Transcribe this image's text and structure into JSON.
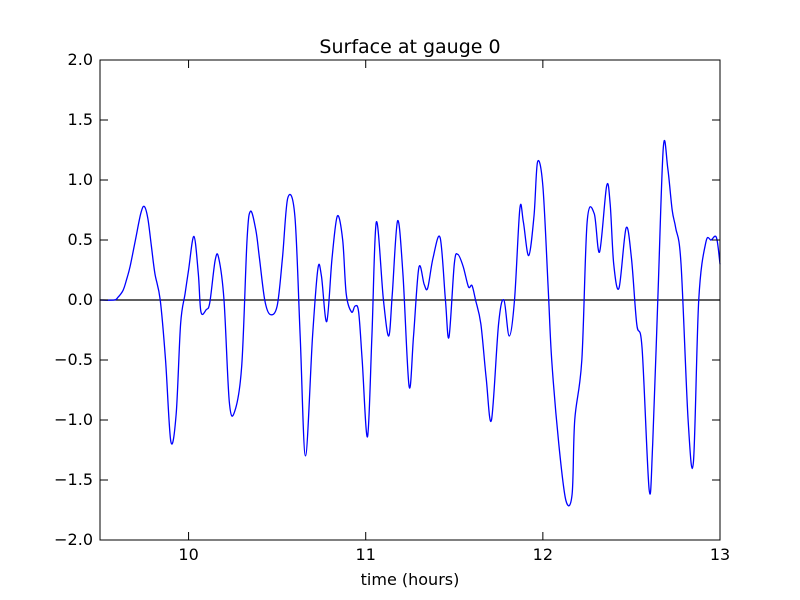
{
  "chart_data": {
    "type": "line",
    "title": "Surface at gauge 0",
    "xlabel": "time (hours)",
    "ylabel": "",
    "xlim": [
      9.5,
      13.0
    ],
    "ylim": [
      -2.0,
      2.0
    ],
    "xticks": [
      10,
      11,
      12,
      13
    ],
    "xtick_labels": [
      "10",
      "11",
      "12",
      "13"
    ],
    "yticks": [
      -2.0,
      -1.5,
      -1.0,
      -0.5,
      0.0,
      0.5,
      1.0,
      1.5,
      2.0
    ],
    "ytick_labels": [
      "−2.0",
      "−1.5",
      "−1.0",
      "−0.5",
      "0.0",
      "0.5",
      "1.0",
      "1.5",
      "2.0"
    ],
    "grid": false,
    "reference_line": {
      "y": 0.0,
      "color": "#000000"
    },
    "series": [
      {
        "color": "#0000ff",
        "x": [
          9.5,
          9.58,
          9.6,
          9.63,
          9.65,
          9.67,
          9.7,
          9.73,
          9.75,
          9.77,
          9.79,
          9.81,
          9.84,
          9.87,
          9.9,
          9.93,
          9.955,
          9.98,
          10.0,
          10.03,
          10.055,
          10.07,
          10.1,
          10.12,
          10.15,
          10.17,
          10.2,
          10.23,
          10.26,
          10.3,
          10.33,
          10.35,
          10.38,
          10.4,
          10.43,
          10.46,
          10.5,
          10.53,
          10.56,
          10.6,
          10.63,
          10.66,
          10.7,
          10.73,
          10.75,
          10.78,
          10.81,
          10.84,
          10.87,
          10.89,
          10.92,
          10.94,
          10.96,
          10.98,
          11.01,
          11.035,
          11.06,
          11.1,
          11.13,
          11.15,
          11.18,
          11.21,
          11.245,
          11.27,
          11.3,
          11.33,
          11.35,
          11.38,
          11.42,
          11.45,
          11.47,
          11.5,
          11.52,
          11.55,
          11.58,
          11.6,
          11.62,
          11.65,
          11.68,
          11.71,
          11.75,
          11.78,
          11.81,
          11.84,
          11.87,
          11.89,
          11.92,
          11.95,
          11.97,
          12.0,
          12.03,
          12.05,
          12.09,
          12.13,
          12.165,
          12.18,
          12.22,
          12.25,
          12.29,
          12.32,
          12.36,
          12.38,
          12.4,
          12.43,
          12.47,
          12.5,
          12.53,
          12.56,
          12.6,
          12.62,
          12.65,
          12.68,
          12.705,
          12.73,
          12.75,
          12.78,
          12.82,
          12.85,
          12.88,
          12.92,
          12.95,
          12.98,
          13.0
        ],
        "values": [
          0.0,
          0.0,
          0.02,
          0.08,
          0.17,
          0.28,
          0.5,
          0.72,
          0.78,
          0.68,
          0.45,
          0.22,
          0.0,
          -0.5,
          -1.18,
          -0.95,
          -0.2,
          0.05,
          0.25,
          0.53,
          0.22,
          -0.1,
          -0.08,
          -0.02,
          0.33,
          0.35,
          0.0,
          -0.85,
          -0.93,
          -0.55,
          0.5,
          0.74,
          0.58,
          0.35,
          0.0,
          -0.12,
          -0.05,
          0.35,
          0.85,
          0.7,
          -0.3,
          -1.3,
          -0.3,
          0.26,
          0.2,
          -0.18,
          0.35,
          0.7,
          0.5,
          0.05,
          -0.1,
          -0.05,
          -0.1,
          -0.5,
          -1.14,
          -0.3,
          0.65,
          0.0,
          -0.3,
          0.05,
          0.66,
          0.22,
          -0.72,
          -0.3,
          0.27,
          0.13,
          0.1,
          0.35,
          0.52,
          0.0,
          -0.31,
          0.3,
          0.38,
          0.28,
          0.11,
          0.12,
          0.0,
          -0.2,
          -0.65,
          -1.0,
          -0.2,
          0.0,
          -0.3,
          0.0,
          0.76,
          0.65,
          0.37,
          0.7,
          1.15,
          0.95,
          0.1,
          -0.5,
          -1.2,
          -1.67,
          -1.62,
          -1.0,
          -0.5,
          0.65,
          0.72,
          0.4,
          0.95,
          0.8,
          0.3,
          0.1,
          0.6,
          0.35,
          -0.2,
          -0.4,
          -1.58,
          -1.2,
          0.05,
          1.27,
          1.1,
          0.75,
          0.6,
          0.3,
          -1.0,
          -1.35,
          0.0,
          0.48,
          0.5,
          0.52,
          0.3
        ]
      }
    ]
  }
}
